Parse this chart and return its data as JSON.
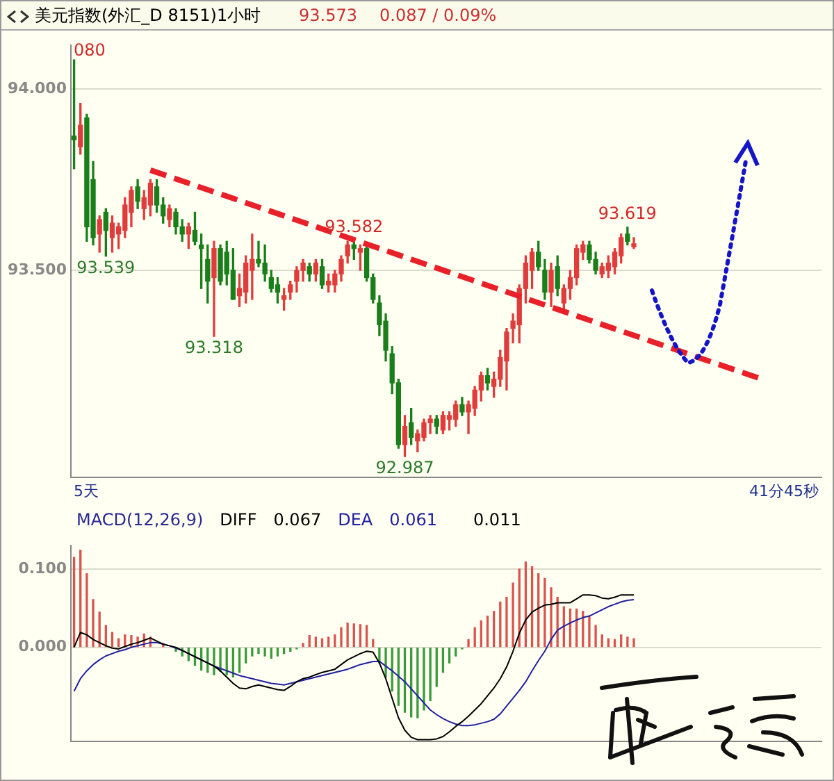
{
  "chart_data": [
    {
      "type": "candlestick",
      "title": "美元指数(外汇_D 8151)1小时",
      "categories": [
        null,
        null,
        null,
        null,
        null,
        null,
        null,
        null,
        null,
        null,
        null,
        null,
        null,
        null,
        null,
        null,
        null,
        null,
        null,
        null,
        null,
        null,
        null,
        null,
        null,
        null,
        null,
        null,
        null,
        null,
        null,
        null,
        null,
        null,
        null,
        null,
        null,
        null,
        null,
        null,
        null,
        null,
        null,
        null,
        null,
        null,
        null,
        null,
        null,
        null,
        null,
        null,
        null,
        null,
        null,
        null,
        null,
        null,
        null,
        null,
        null,
        null,
        null,
        null,
        null,
        null,
        null,
        null,
        null,
        null,
        null,
        null,
        null,
        null,
        null,
        null,
        null,
        null,
        null,
        null,
        null,
        null,
        null,
        null,
        null,
        null,
        null,
        null,
        null,
        null,
        null,
        null,
        null,
        null,
        null,
        null,
        null,
        null,
        null,
        null,
        null,
        null,
        null,
        null,
        null,
        null,
        null,
        null,
        null,
        null,
        null,
        null,
        null,
        null,
        null,
        null,
        null,
        null
      ],
      "ohlc": [
        [
          93.87,
          94.08,
          93.78,
          93.86
        ],
        [
          93.84,
          93.96,
          93.82,
          93.9
        ],
        [
          93.92,
          93.93,
          93.58,
          93.62
        ],
        [
          93.75,
          93.8,
          93.57,
          93.59
        ],
        [
          93.6,
          93.65,
          93.55,
          93.64
        ],
        [
          93.66,
          93.67,
          93.539,
          93.61
        ],
        [
          93.59,
          93.65,
          93.55,
          93.63
        ],
        [
          93.6,
          93.63,
          93.56,
          93.62
        ],
        [
          93.61,
          93.7,
          93.59,
          93.68
        ],
        [
          93.66,
          93.73,
          93.62,
          93.72
        ],
        [
          93.73,
          93.75,
          93.67,
          93.69
        ],
        [
          93.67,
          93.72,
          93.64,
          93.7
        ],
        [
          93.68,
          93.75,
          93.65,
          93.74
        ],
        [
          93.73,
          93.75,
          93.66,
          93.68
        ],
        [
          93.68,
          93.7,
          93.63,
          93.65
        ],
        [
          93.64,
          93.68,
          93.62,
          93.67
        ],
        [
          93.66,
          93.67,
          93.6,
          93.62
        ],
        [
          93.62,
          93.64,
          93.58,
          93.6
        ],
        [
          93.6,
          93.63,
          93.56,
          93.62
        ],
        [
          93.61,
          93.66,
          93.57,
          93.58
        ],
        [
          93.57,
          93.6,
          93.45,
          93.56
        ],
        [
          93.53,
          93.57,
          93.41,
          93.47
        ],
        [
          93.48,
          93.58,
          93.318,
          93.56
        ],
        [
          93.56,
          93.57,
          93.46,
          93.47
        ],
        [
          93.55,
          93.58,
          93.46,
          93.49
        ],
        [
          93.5,
          93.56,
          93.42,
          93.42
        ],
        [
          93.43,
          93.49,
          93.4,
          93.45
        ],
        [
          93.44,
          93.54,
          93.41,
          93.52
        ],
        [
          93.5,
          93.6,
          93.42,
          93.53
        ],
        [
          93.53,
          93.58,
          93.51,
          93.52
        ],
        [
          93.52,
          93.57,
          93.47,
          93.49
        ],
        [
          93.48,
          93.5,
          93.44,
          93.45
        ],
        [
          93.46,
          93.48,
          93.41,
          93.44
        ],
        [
          93.42,
          93.45,
          93.39,
          93.43
        ],
        [
          93.44,
          93.47,
          93.42,
          93.46
        ],
        [
          93.47,
          93.51,
          93.44,
          93.5
        ],
        [
          93.5,
          93.53,
          93.47,
          93.52
        ],
        [
          93.51,
          93.52,
          93.47,
          93.49
        ],
        [
          93.49,
          93.53,
          93.47,
          93.52
        ],
        [
          93.51,
          93.53,
          93.45,
          93.46
        ],
        [
          93.46,
          93.49,
          93.44,
          93.47
        ],
        [
          93.46,
          93.5,
          93.44,
          93.49
        ],
        [
          93.49,
          93.54,
          93.47,
          93.53
        ],
        [
          93.54,
          93.58,
          93.52,
          93.57
        ],
        [
          93.57,
          93.582,
          93.53,
          93.56
        ],
        [
          93.55,
          93.57,
          93.5,
          93.56
        ],
        [
          93.56,
          93.57,
          93.47,
          93.48
        ],
        [
          93.48,
          93.49,
          93.41,
          93.42
        ],
        [
          93.41,
          93.43,
          93.32,
          93.35
        ],
        [
          93.36,
          93.38,
          93.25,
          93.28
        ],
        [
          93.27,
          93.29,
          93.16,
          93.19
        ],
        [
          93.19,
          93.2,
          93.01,
          93.02
        ],
        [
          93.02,
          93.1,
          92.987,
          93.07
        ],
        [
          93.08,
          93.12,
          93.02,
          93.04
        ],
        [
          93.03,
          93.06,
          93,
          93.05
        ],
        [
          93.04,
          93.09,
          93.03,
          93.08
        ],
        [
          93.08,
          93.1,
          93.05,
          93.09
        ],
        [
          93.09,
          93.1,
          93.05,
          93.07
        ],
        [
          93.06,
          93.11,
          93.05,
          93.1
        ],
        [
          93.09,
          93.11,
          93.06,
          93.1
        ],
        [
          93.09,
          93.14,
          93.07,
          93.13
        ],
        [
          93.13,
          93.15,
          93.1,
          93.11
        ],
        [
          93.11,
          93.14,
          93.05,
          93.13
        ],
        [
          93.12,
          93.18,
          93.1,
          93.17
        ],
        [
          93.17,
          93.22,
          93.14,
          93.21
        ],
        [
          93.21,
          93.23,
          93.17,
          93.19
        ],
        [
          93.18,
          93.22,
          93.15,
          93.2
        ],
        [
          93.2,
          93.28,
          93.18,
          93.26
        ],
        [
          93.25,
          93.34,
          93.17,
          93.33
        ],
        [
          93.34,
          93.38,
          93.3,
          93.36
        ],
        [
          93.35,
          93.46,
          93.3,
          93.45
        ],
        [
          93.45,
          93.54,
          93.41,
          93.52
        ],
        [
          93.5,
          93.56,
          93.45,
          93.55
        ],
        [
          93.55,
          93.58,
          93.5,
          93.51
        ],
        [
          93.5,
          93.53,
          93.42,
          93.44
        ],
        [
          93.44,
          93.52,
          93.4,
          93.5
        ],
        [
          93.51,
          93.54,
          93.43,
          93.45
        ],
        [
          93.41,
          93.46,
          93.39,
          93.45
        ],
        [
          93.45,
          93.5,
          93.42,
          93.48
        ],
        [
          93.48,
          93.57,
          93.46,
          93.56
        ],
        [
          93.55,
          93.58,
          93.53,
          93.57
        ],
        [
          93.57,
          93.58,
          93.52,
          93.53
        ],
        [
          93.53,
          93.55,
          93.49,
          93.5
        ],
        [
          93.49,
          93.52,
          93.48,
          93.51
        ],
        [
          93.5,
          93.54,
          93.48,
          93.52
        ],
        [
          93.51,
          93.56,
          93.49,
          93.55
        ],
        [
          93.54,
          93.6,
          93.52,
          93.59
        ],
        [
          93.6,
          93.619,
          93.57,
          93.58
        ],
        [
          93.565,
          93.59,
          93.56,
          93.573
        ],
        null,
        null,
        null,
        null,
        null,
        null,
        null,
        null,
        null,
        null,
        null,
        null,
        null,
        null,
        null,
        null,
        null,
        null,
        null,
        null,
        null,
        null,
        null,
        null,
        null,
        null,
        null,
        null,
        null
      ],
      "colors": [
        "#1a7f1a",
        "#e03c3c",
        "#1a7f1a",
        "#1a7f1a",
        "#e03c3c",
        "#1a7f1a",
        "#e03c3c",
        "#e03c3c",
        "#e03c3c",
        "#e03c3c",
        "#1a7f1a",
        "#e03c3c",
        "#e03c3c",
        "#1a7f1a",
        "#1a7f1a",
        "#e03c3c",
        "#1a7f1a",
        "#1a7f1a",
        "#e03c3c",
        "#1a7f1a",
        "#1a7f1a",
        "#1a7f1a",
        "#e03c3c",
        "#1a7f1a",
        "#1a7f1a",
        "#1a7f1a",
        "#e03c3c",
        "#e03c3c",
        "#e03c3c",
        "#1a7f1a",
        "#1a7f1a",
        "#1a7f1a",
        "#1a7f1a",
        "#e03c3c",
        "#e03c3c",
        "#e03c3c",
        "#e03c3c",
        "#1a7f1a",
        "#e03c3c",
        "#1a7f1a",
        "#e03c3c",
        "#e03c3c",
        "#e03c3c",
        "#e03c3c",
        "#1a7f1a",
        "#e03c3c",
        "#1a7f1a",
        "#1a7f1a",
        "#1a7f1a",
        "#1a7f1a",
        "#1a7f1a",
        "#1a7f1a",
        "#e03c3c",
        "#1a7f1a",
        "#e03c3c",
        "#e03c3c",
        "#e03c3c",
        "#1a7f1a",
        "#e03c3c",
        "#e03c3c",
        "#e03c3c",
        "#1a7f1a",
        "#e03c3c",
        "#e03c3c",
        "#e03c3c",
        "#1a7f1a",
        "#e03c3c",
        "#e03c3c",
        "#e03c3c",
        "#e03c3c",
        "#e03c3c",
        "#e03c3c",
        "#e03c3c",
        "#1a7f1a",
        "#1a7f1a",
        "#e03c3c",
        "#1a7f1a",
        "#e03c3c",
        "#e03c3c",
        "#e03c3c",
        "#e03c3c",
        "#1a7f1a",
        "#1a7f1a",
        "#e03c3c",
        "#e03c3c",
        "#e03c3c",
        "#e03c3c",
        "#1a7f1a",
        "#e03c3c",
        null,
        null,
        null,
        null,
        null,
        null,
        null,
        null,
        null,
        null,
        null,
        null,
        null,
        null,
        null,
        null,
        null,
        null,
        null,
        null,
        null,
        null,
        null,
        null,
        null,
        null,
        null,
        null,
        null
      ],
      "series": [
        {
          "type": "line",
          "color": "#e8202a",
          "line_style": "dashed",
          "values": [
            null,
            null,
            null,
            null,
            null,
            null,
            null,
            null,
            null,
            null,
            null,
            null,
            93.776,
            null,
            null,
            null,
            null,
            null,
            null,
            null,
            null,
            null,
            null,
            null,
            null,
            null,
            null,
            null,
            null,
            null,
            null,
            null,
            null,
            null,
            null,
            null,
            null,
            null,
            null,
            null,
            null,
            null,
            null,
            null,
            null,
            null,
            null,
            null,
            null,
            null,
            null,
            null,
            null,
            null,
            null,
            null,
            null,
            null,
            null,
            null,
            null,
            null,
            null,
            null,
            null,
            null,
            null,
            null,
            null,
            null,
            null,
            null,
            null,
            null,
            null,
            null,
            null,
            null,
            null,
            null,
            null,
            null,
            null,
            null,
            null,
            null,
            null,
            null,
            null,
            null,
            null,
            null,
            null,
            null,
            null,
            null,
            null,
            null,
            null,
            null,
            null,
            null,
            null,
            null,
            null,
            null,
            null,
            null,
            93.201,
            null,
            null,
            null,
            null,
            null,
            null,
            null,
            null,
            null
          ]
        }
      ],
      "annotations": [
        "93.573",
        "0.087 / 0.09%",
        "5天",
        "41分45秒",
        "080",
        {
          "text": "93.539",
          "y": 93.539
        },
        {
          "text": "93.318",
          "y": 93.318
        },
        {
          "text": "93.582",
          "y": 93.582
        },
        {
          "text": "92.987",
          "y": 92.987
        },
        {
          "text": "93.619",
          "y": 93.619
        }
      ],
      "ylim": [
        92.93,
        94.12
      ],
      "yticks": [
        {
          "value": 94,
          "label": "94.000"
        },
        {
          "value": 93.5,
          "label": "93.500"
        }
      ],
      "grid": "y",
      "tick_labels": "y"
    },
    {
      "type": "bar",
      "title": "MACD(12,26,9)",
      "categories": [
        null,
        null,
        null,
        null,
        null,
        null,
        null,
        null,
        null,
        null,
        null,
        null,
        null,
        null,
        null,
        null,
        null,
        null,
        null,
        null,
        null,
        null,
        null,
        null,
        null,
        null,
        null,
        null,
        null,
        null,
        null,
        null,
        null,
        null,
        null,
        null,
        null,
        null,
        null,
        null,
        null,
        null,
        null,
        null,
        null,
        null,
        null,
        null,
        null,
        null,
        null,
        null,
        null,
        null,
        null,
        null,
        null,
        null,
        null,
        null,
        null,
        null,
        null,
        null,
        null,
        null,
        null,
        null,
        null,
        null,
        null,
        null,
        null,
        null,
        null,
        null,
        null,
        null,
        null,
        null,
        null,
        null,
        null,
        null,
        null,
        null,
        null,
        null,
        null,
        null,
        null,
        null,
        null,
        null,
        null,
        null,
        null,
        null,
        null,
        null,
        null,
        null,
        null,
        null,
        null,
        null,
        null,
        null,
        null,
        null,
        null,
        null,
        null,
        null,
        null,
        null,
        null,
        null
      ],
      "series": [
        {
          "type": "bar",
          "values": [
            0.115,
            0.124,
            0.094,
            0.061,
            0.045,
            0.028,
            0.019,
            0.011,
            0.016,
            0.015,
            0.013,
            0.017,
            0.013,
            null,
            0.005,
            null,
            -0.005,
            -0.011,
            -0.017,
            -0.023,
            -0.029,
            -0.032,
            -0.035,
            -0.031,
            -0.035,
            -0.038,
            -0.032,
            -0.02,
            -0.011,
            -0.008,
            -0.011,
            -0.014,
            -0.011,
            -0.008,
            -0.005,
            -0.002,
            0.005,
            0.015,
            0.013,
            0.011,
            0.013,
            0.016,
            0.025,
            0.031,
            0.03,
            0.029,
            0.028,
            0.01,
            -0.02,
            -0.038,
            -0.056,
            -0.074,
            -0.083,
            -0.089,
            -0.09,
            -0.08,
            -0.068,
            -0.05,
            -0.032,
            -0.02,
            -0.011,
            -0.002,
            0.01,
            0.025,
            0.034,
            0.04,
            0.046,
            0.058,
            0.064,
            0.082,
            0.1,
            0.109,
            0.103,
            0.094,
            0.088,
            0.076,
            0.064,
            0.052,
            0.049,
            0.049,
            0.046,
            0.04,
            0.028,
            0.016,
            0.011,
            0.01,
            0.016,
            0.013,
            0.011,
            null,
            null,
            null,
            null,
            null,
            null,
            null,
            null,
            null,
            null,
            null,
            null,
            null,
            null,
            null,
            null,
            null,
            null,
            null,
            null,
            null,
            null,
            null,
            null,
            null,
            null,
            null,
            null,
            null
          ],
          "colors": [
            "#d9534f",
            "#d9534f",
            "#d9534f",
            "#d9534f",
            "#d9534f",
            "#d9534f",
            "#d9534f",
            "#d9534f",
            "#d9534f",
            "#d9534f",
            "#d9534f",
            "#d9534f",
            "#d9534f",
            "#d9534f",
            "#d9534f",
            "#d9534f",
            "#3c9a3c",
            "#3c9a3c",
            "#3c9a3c",
            "#3c9a3c",
            "#3c9a3c",
            "#3c9a3c",
            "#3c9a3c",
            "#3c9a3c",
            "#3c9a3c",
            "#3c9a3c",
            "#3c9a3c",
            "#3c9a3c",
            "#3c9a3c",
            "#3c9a3c",
            "#3c9a3c",
            "#3c9a3c",
            "#3c9a3c",
            "#3c9a3c",
            "#3c9a3c",
            "#3c9a3c",
            "#d9534f",
            "#d9534f",
            "#d9534f",
            "#d9534f",
            "#d9534f",
            "#d9534f",
            "#d9534f",
            "#d9534f",
            "#d9534f",
            "#d9534f",
            "#d9534f",
            "#d9534f",
            "#3c9a3c",
            "#3c9a3c",
            "#3c9a3c",
            "#3c9a3c",
            "#3c9a3c",
            "#3c9a3c",
            "#3c9a3c",
            "#3c9a3c",
            "#3c9a3c",
            "#3c9a3c",
            "#3c9a3c",
            "#3c9a3c",
            "#3c9a3c",
            "#3c9a3c",
            "#d9534f",
            "#d9534f",
            "#d9534f",
            "#d9534f",
            "#d9534f",
            "#d9534f",
            "#d9534f",
            "#d9534f",
            "#d9534f",
            "#d9534f",
            "#d9534f",
            "#d9534f",
            "#d9534f",
            "#d9534f",
            "#d9534f",
            "#d9534f",
            "#d9534f",
            "#d9534f",
            "#d9534f",
            "#d9534f",
            "#d9534f",
            "#d9534f",
            "#d9534f",
            "#d9534f",
            "#d9534f",
            "#d9534f",
            "#d9534f",
            null,
            null,
            null,
            null,
            null,
            null,
            null,
            null,
            null,
            null,
            null,
            null,
            null,
            null,
            null,
            null,
            null,
            null,
            null,
            null,
            null,
            null,
            null,
            null,
            null,
            null,
            null,
            null,
            null
          ]
        },
        {
          "type": "line",
          "name": "DIFF",
          "color": "#000000",
          "values": [
            0,
            0.019,
            0.016,
            0.01,
            0.006,
            0.002,
            -0.001,
            -0.002,
            0.001,
            0.004,
            0.006,
            0.009,
            0.012,
            0.008,
            0.004,
            0.002,
            0,
            -0.004,
            -0.008,
            -0.012,
            -0.016,
            -0.02,
            -0.024,
            -0.03,
            -0.038,
            -0.046,
            -0.052,
            -0.053,
            -0.05,
            -0.048,
            -0.05,
            -0.052,
            -0.054,
            -0.055,
            -0.05,
            -0.044,
            -0.04,
            -0.038,
            -0.035,
            -0.032,
            -0.03,
            -0.028,
            -0.022,
            -0.016,
            -0.012,
            -0.008,
            -0.005,
            -0.006,
            -0.02,
            -0.04,
            -0.065,
            -0.09,
            -0.106,
            -0.115,
            -0.118,
            -0.118,
            -0.118,
            -0.117,
            -0.114,
            -0.108,
            -0.101,
            -0.095,
            -0.088,
            -0.08,
            -0.072,
            -0.062,
            -0.052,
            -0.04,
            -0.025,
            -0.005,
            0.018,
            0.035,
            0.045,
            0.05,
            0.054,
            0.055,
            0.057,
            0.057,
            0.057,
            0.062,
            0.067,
            0.067,
            0.066,
            0.063,
            0.062,
            0.064,
            0.067,
            0.067,
            0.067,
            null,
            null,
            null,
            null,
            null,
            null,
            null,
            null,
            null,
            null,
            null,
            null,
            null,
            null,
            null,
            null,
            null,
            null,
            null,
            null,
            null,
            null,
            null,
            null,
            null,
            null,
            null,
            null,
            null
          ]
        },
        {
          "type": "line",
          "name": "DEA",
          "color": "#2020a0",
          "values": [
            -0.056,
            -0.04,
            -0.03,
            -0.022,
            -0.016,
            -0.011,
            -0.008,
            -0.005,
            -0.003,
            0,
            0.002,
            0.004,
            0.006,
            0.006,
            0.004,
            0.002,
            -0.001,
            -0.004,
            -0.008,
            -0.012,
            -0.016,
            -0.02,
            -0.024,
            -0.027,
            -0.03,
            -0.033,
            -0.036,
            -0.038,
            -0.04,
            -0.042,
            -0.044,
            -0.046,
            -0.047,
            -0.048,
            -0.046,
            -0.044,
            -0.042,
            -0.04,
            -0.038,
            -0.036,
            -0.034,
            -0.032,
            -0.03,
            -0.028,
            -0.025,
            -0.022,
            -0.02,
            -0.018,
            -0.018,
            -0.024,
            -0.03,
            -0.037,
            -0.044,
            -0.053,
            -0.062,
            -0.071,
            -0.08,
            -0.086,
            -0.091,
            -0.095,
            -0.098,
            -0.1,
            -0.1,
            -0.099,
            -0.097,
            -0.095,
            -0.092,
            -0.085,
            -0.075,
            -0.065,
            -0.055,
            -0.044,
            -0.03,
            -0.017,
            -0.005,
            0.01,
            0.022,
            0.027,
            0.031,
            0.035,
            0.038,
            0.04,
            0.044,
            0.048,
            0.052,
            0.055,
            0.058,
            0.06,
            0.061,
            null,
            null,
            null,
            null,
            null,
            null,
            null,
            null,
            null,
            null,
            null,
            null,
            null,
            null,
            null,
            null,
            null,
            null,
            null,
            null,
            null,
            null,
            null,
            null,
            null,
            null,
            null,
            null,
            null
          ]
        }
      ],
      "annotations": [
        "0.067",
        "0.061",
        "0.011"
      ],
      "ylim": [
        -0.12,
        0.13
      ],
      "yticks": [
        {
          "value": 0,
          "label": "0.000"
        },
        {
          "value": 0.1,
          "label": "0.100"
        }
      ],
      "grid": "y",
      "tick_labels": "y",
      "legend": "top left"
    }
  ]
}
